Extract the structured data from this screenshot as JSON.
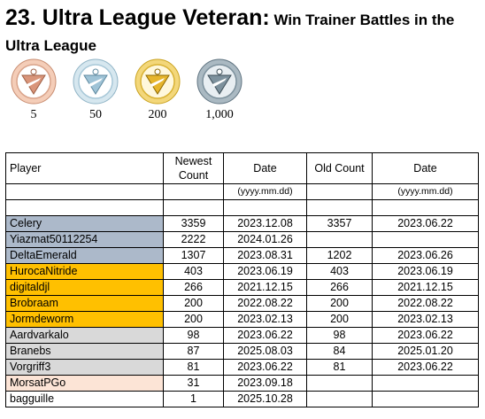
{
  "title": {
    "main": "23. Ultra League Veteran:",
    "rest": " Win Trainer Battles in the Ultra League"
  },
  "medals": [
    {
      "tier": "bronze",
      "label": "5",
      "ring": "#f4cdb8",
      "face": "#d9957a"
    },
    {
      "tier": "silver",
      "label": "50",
      "ring": "#d6e7ef",
      "face": "#9fc3d6"
    },
    {
      "tier": "gold",
      "label": "200",
      "ring": "#f3d77a",
      "face": "#e6b52c"
    },
    {
      "tier": "platinum",
      "label": "1,000",
      "ring": "#aab9c2",
      "face": "#7d919d"
    }
  ],
  "table": {
    "headers": [
      "Player",
      "Newest Count",
      "Date",
      "Old Count",
      "Date"
    ],
    "units": [
      "",
      "",
      "(yyyy.mm.dd)",
      "",
      "(yyyy.mm.dd)"
    ],
    "rows": [
      {
        "player": "Celery",
        "newest": "3359",
        "date": "2023.12.08",
        "old": "3357",
        "old_date": "2023.06.22",
        "tier": "blue"
      },
      {
        "player": "Yiazmat50112254",
        "newest": "2222",
        "date": "2024.01.26",
        "old": "",
        "old_date": "",
        "tier": "blue"
      },
      {
        "player": "DeltaEmerald",
        "newest": "1307",
        "date": "2023.08.31",
        "old": "1202",
        "old_date": "2023.06.26",
        "tier": "blue"
      },
      {
        "player": "HurocaNitride",
        "newest": "403",
        "date": "2023.06.19",
        "old": "403",
        "old_date": "2023.06.19",
        "tier": "gold"
      },
      {
        "player": "digitaldjl",
        "newest": "266",
        "date": "2021.12.15",
        "old": "266",
        "old_date": "2021.12.15",
        "tier": "gold"
      },
      {
        "player": "Brobraam",
        "newest": "200",
        "date": "2022.08.22",
        "old": "200",
        "old_date": "2022.08.22",
        "tier": "gold"
      },
      {
        "player": "Jormdeworm",
        "newest": "200",
        "date": "2023.02.13",
        "old": "200",
        "old_date": "2023.02.13",
        "tier": "gold"
      },
      {
        "player": "Aardvarkalo",
        "newest": "98",
        "date": "2023.06.22",
        "old": "98",
        "old_date": "2023.06.22",
        "tier": "gray"
      },
      {
        "player": "Branebs",
        "newest": "87",
        "date": "2025.08.03",
        "old": "84",
        "old_date": "2025.01.20",
        "tier": "gray"
      },
      {
        "player": "Vorgriff3",
        "newest": "81",
        "date": "2023.06.22",
        "old": "81",
        "old_date": "2023.06.22",
        "tier": "gray"
      },
      {
        "player": "MorsatPGo",
        "newest": "31",
        "date": "2023.09.18",
        "old": "",
        "old_date": "",
        "tier": "peach"
      },
      {
        "player": "bagguille",
        "newest": "1",
        "date": "2025.10.28",
        "old": "",
        "old_date": "",
        "tier": "none"
      }
    ]
  }
}
